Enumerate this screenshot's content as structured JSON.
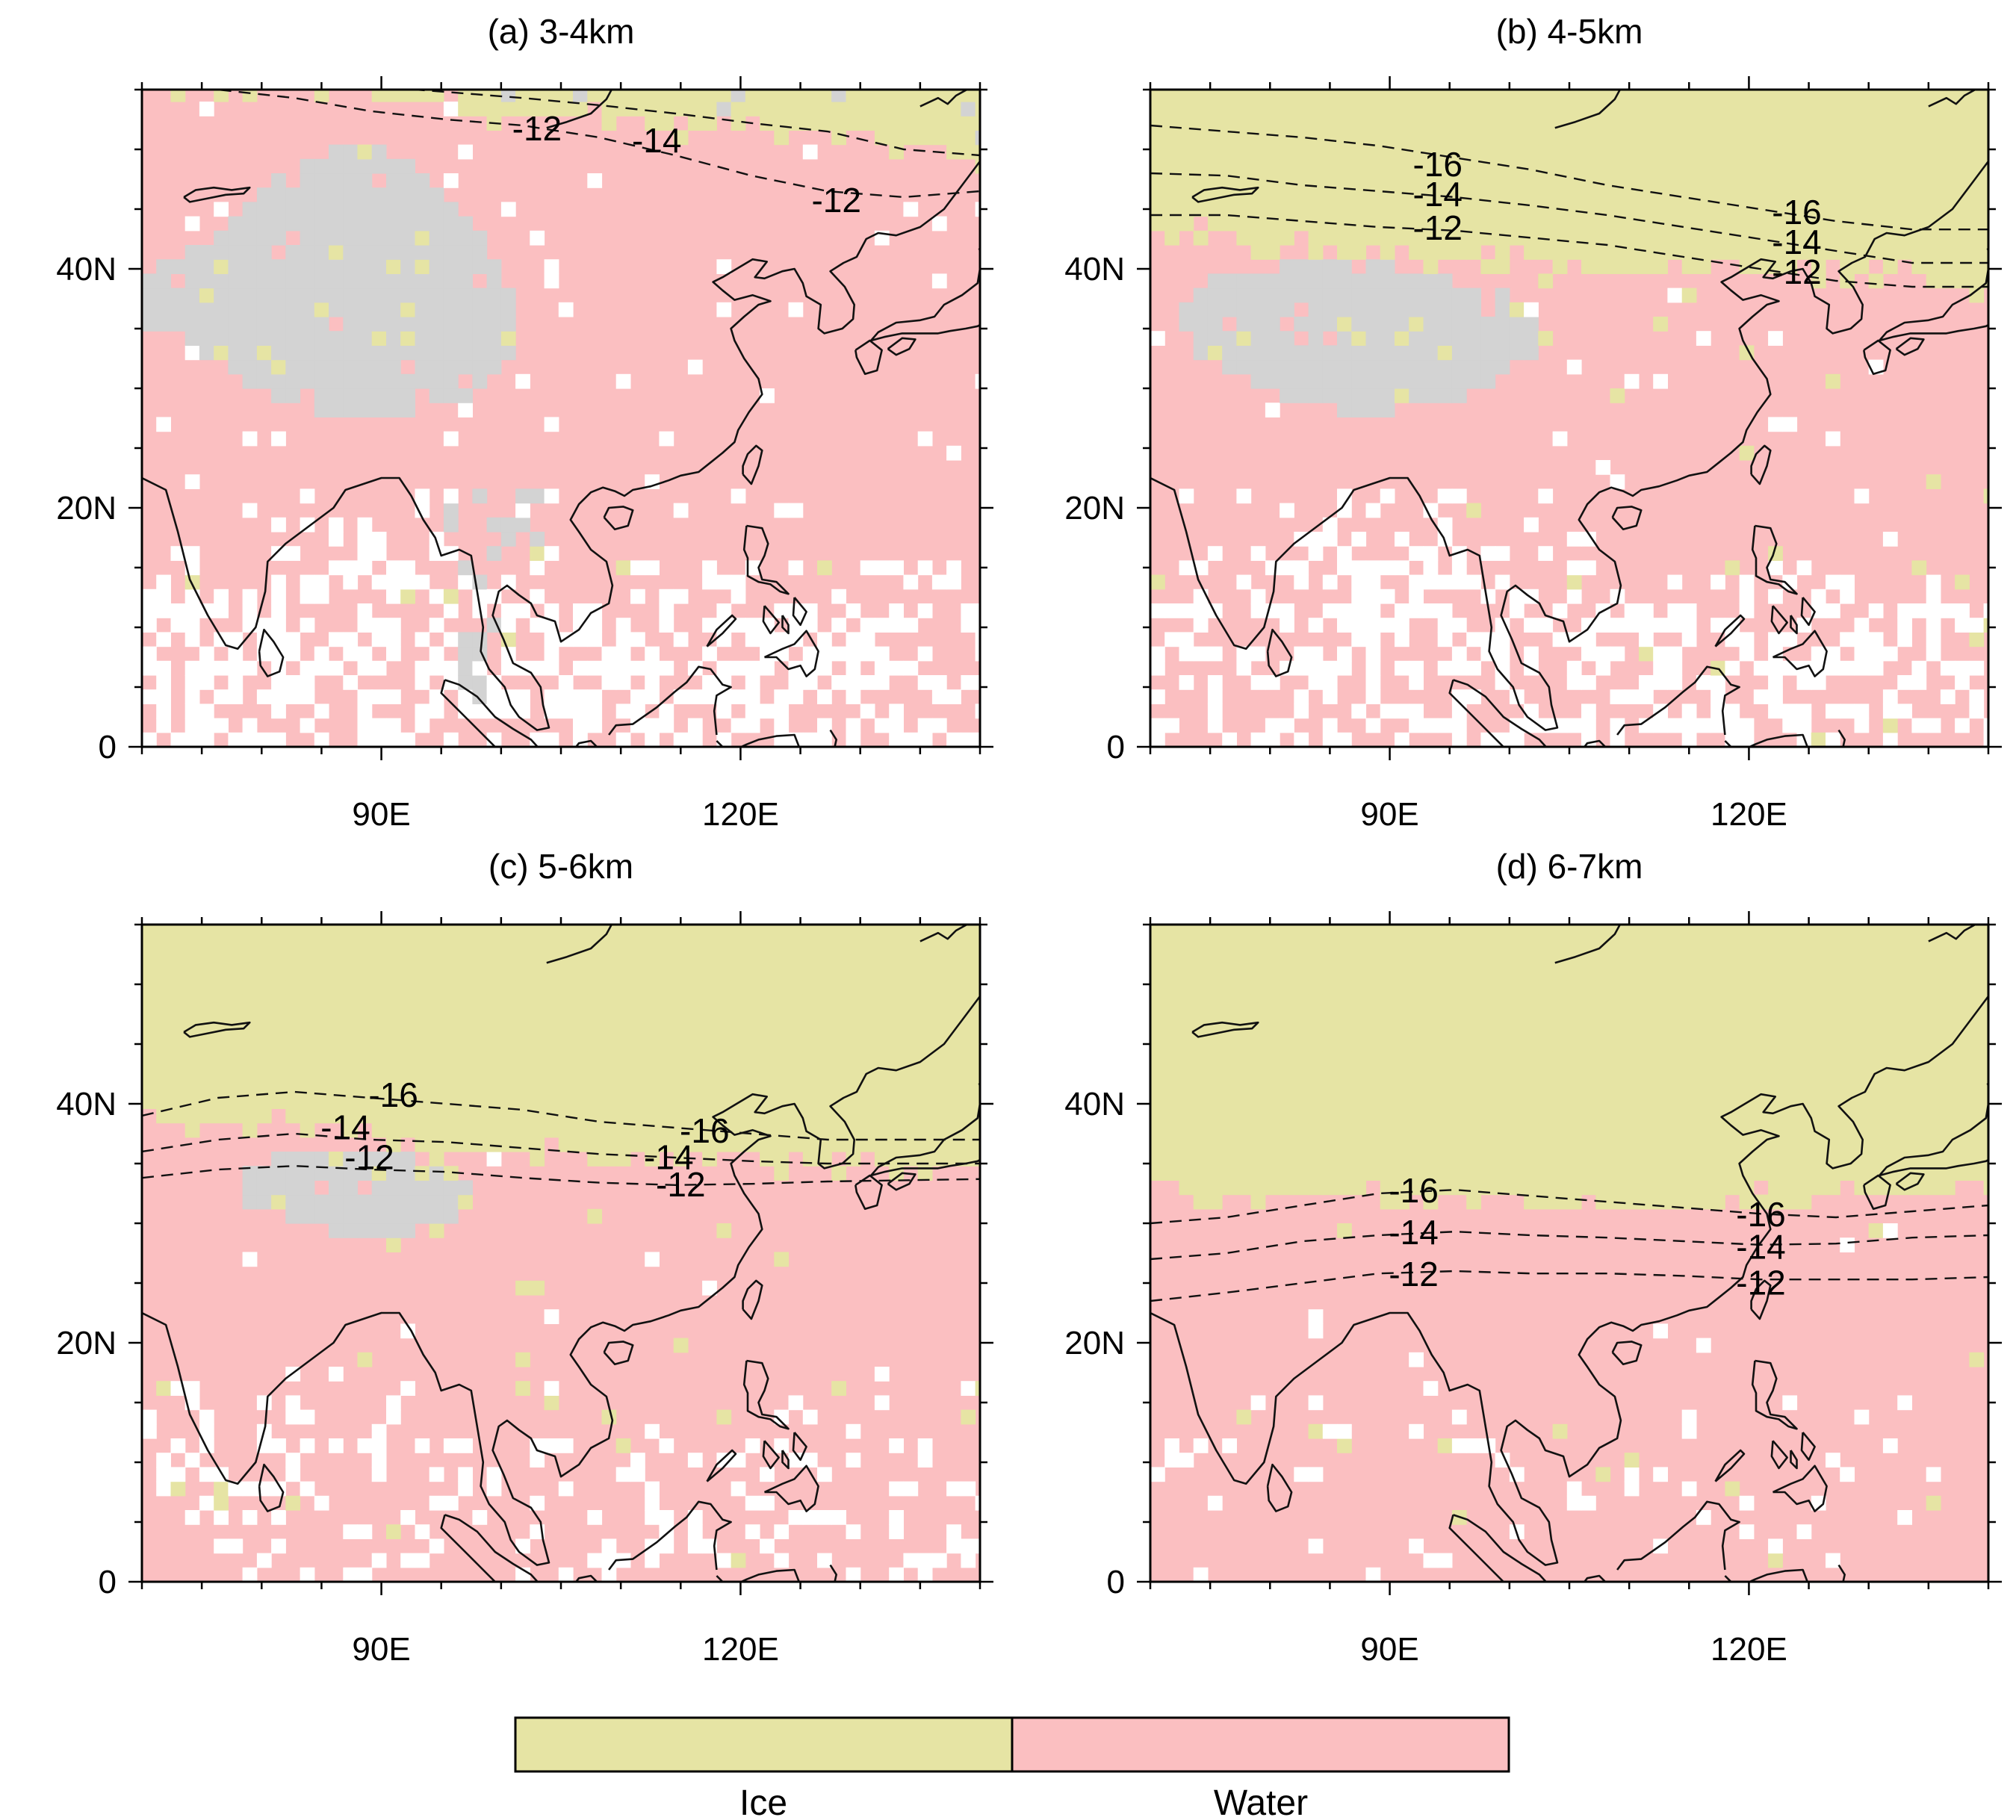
{
  "colors": {
    "ice": "#e6e4a4",
    "water": "#fbbfc1",
    "no_data": "#d3d3d3",
    "background": "#ffffff"
  },
  "legend": {
    "items": [
      {
        "label": "Ice",
        "color": "#e6e4a4"
      },
      {
        "label": "Water",
        "color": "#fbbfc1"
      }
    ]
  },
  "axes": {
    "lon_range": [
      70,
      140
    ],
    "lat_range": [
      0,
      55
    ],
    "x_ticks": [
      {
        "value": 90,
        "label": "90E"
      },
      {
        "value": 120,
        "label": "120E"
      }
    ],
    "y_ticks": [
      {
        "value": 0,
        "label": "0"
      },
      {
        "value": 20,
        "label": "20N"
      },
      {
        "value": 40,
        "label": "40N"
      }
    ]
  },
  "chart_data": [
    {
      "type": "heatmap",
      "title": "(a) 3-4km",
      "ice_boundary_lat": [
        55,
        55,
        55,
        55,
        54.5,
        54,
        53,
        52.5,
        52.5,
        52,
        52,
        51.5,
        51,
        50.5,
        49
      ],
      "gray_region": "tibet_large",
      "white_fraction": 0.5,
      "isotherms": [
        {
          "label": "-12",
          "lat": [
            55.5,
            55,
            54.3,
            53.2,
            52.5,
            52,
            51,
            49.5,
            47.8,
            46.5,
            46,
            46.5
          ]
        },
        {
          "label": "-14",
          "lat": [
            57,
            56.5,
            56,
            55.3,
            54.8,
            54.3,
            53.7,
            53,
            52.2,
            51.5,
            50,
            49.5
          ]
        }
      ],
      "contour_labels": [
        {
          "text": "-12",
          "lon": 103,
          "lat": 51.5
        },
        {
          "text": "-14",
          "lon": 113,
          "lat": 50.5
        },
        {
          "text": "-12",
          "lon": 128,
          "lat": 45.5
        }
      ]
    },
    {
      "type": "heatmap",
      "title": "(b) 4-5km",
      "ice_boundary_lat": [
        43,
        43,
        42,
        41.5,
        41,
        41,
        40.5,
        40.5,
        40,
        40,
        40.5,
        40,
        39.5,
        39,
        38.5
      ],
      "gray_region": "tibet_medium",
      "white_fraction": 0.45,
      "isotherms": [
        {
          "label": "-16",
          "lat": [
            52,
            51.5,
            51,
            50.3,
            49.3,
            48.3,
            47,
            46,
            45,
            44,
            43.3,
            43.3
          ]
        },
        {
          "label": "-14",
          "lat": [
            48,
            47.8,
            47,
            46.5,
            46,
            45.3,
            44.5,
            43.5,
            42.5,
            41.5,
            40.5,
            40.5
          ]
        },
        {
          "label": "-12",
          "lat": [
            44.5,
            44.5,
            44,
            43.5,
            43.2,
            42.6,
            42,
            41,
            40,
            39,
            38.5,
            38.5
          ]
        }
      ],
      "contour_labels": [
        {
          "text": "-16",
          "lon": 94,
          "lat": 48.5
        },
        {
          "text": "-14",
          "lon": 94,
          "lat": 46
        },
        {
          "text": "-12",
          "lon": 94,
          "lat": 43.2
        },
        {
          "text": "-16",
          "lon": 124,
          "lat": 44.5
        },
        {
          "text": "-14",
          "lon": 124,
          "lat": 42
        },
        {
          "text": "-12",
          "lon": 124,
          "lat": 39.5
        }
      ]
    },
    {
      "type": "heatmap",
      "title": "(c) 5-6km",
      "ice_boundary_lat": [
        38,
        38,
        38,
        38,
        37,
        36,
        36,
        36,
        35.5,
        35.5,
        35.5,
        35,
        35,
        34.5,
        34.5
      ],
      "gray_region": "tibet_small",
      "white_fraction": 0.22,
      "isotherms": [
        {
          "label": "-16",
          "lat": [
            39,
            40.5,
            41,
            40.5,
            40,
            39.5,
            38.5,
            38,
            37.5,
            37,
            37,
            37
          ]
        },
        {
          "label": "-14",
          "lat": [
            36,
            37,
            37.5,
            37,
            36.8,
            36.3,
            35.8,
            35.5,
            35.2,
            35,
            35,
            35
          ]
        },
        {
          "label": "-12",
          "lat": [
            33.8,
            34.5,
            34.8,
            34.5,
            34.3,
            33.8,
            33.4,
            33.2,
            33.3,
            33.5,
            33.6,
            33.7
          ]
        }
      ],
      "contour_labels": [
        {
          "text": "-16",
          "lon": 91,
          "lat": 40.5
        },
        {
          "text": "-14",
          "lon": 87,
          "lat": 37.8
        },
        {
          "text": "-12",
          "lon": 89,
          "lat": 35.3
        },
        {
          "text": "-16",
          "lon": 117,
          "lat": 37.5
        },
        {
          "text": "-14",
          "lon": 114,
          "lat": 35.3
        },
        {
          "text": "-12",
          "lon": 115,
          "lat": 33
        }
      ]
    },
    {
      "type": "heatmap",
      "title": "(d) 6-7km",
      "ice_boundary_lat": [
        32,
        32,
        32,
        32,
        32,
        32,
        32,
        32,
        31.5,
        31.5,
        32,
        32,
        32,
        32.5,
        33
      ],
      "gray_region": "none",
      "white_fraction": 0.07,
      "isotherms": [
        {
          "label": "-16",
          "lat": [
            30,
            30.5,
            31.5,
            32.5,
            32.8,
            32.3,
            31.8,
            31.3,
            30.8,
            30.5,
            31,
            31.5
          ]
        },
        {
          "label": "-14",
          "lat": [
            27,
            27.5,
            28.5,
            29,
            29.3,
            29,
            28.8,
            28.5,
            28.2,
            28.3,
            28.8,
            29
          ]
        },
        {
          "label": "-12",
          "lat": [
            23.5,
            24.2,
            25,
            25.8,
            26,
            25.8,
            25.8,
            25.6,
            25.3,
            25.3,
            25.3,
            25.5
          ]
        }
      ],
      "contour_labels": [
        {
          "text": "-16",
          "lon": 92,
          "lat": 32.5
        },
        {
          "text": "-14",
          "lon": 92,
          "lat": 29
        },
        {
          "text": "-12",
          "lon": 92,
          "lat": 25.5
        },
        {
          "text": "-16",
          "lon": 121,
          "lat": 30.5
        },
        {
          "text": "-14",
          "lon": 121,
          "lat": 27.8
        },
        {
          "text": "-12",
          "lon": 121,
          "lat": 24.8
        }
      ]
    }
  ]
}
